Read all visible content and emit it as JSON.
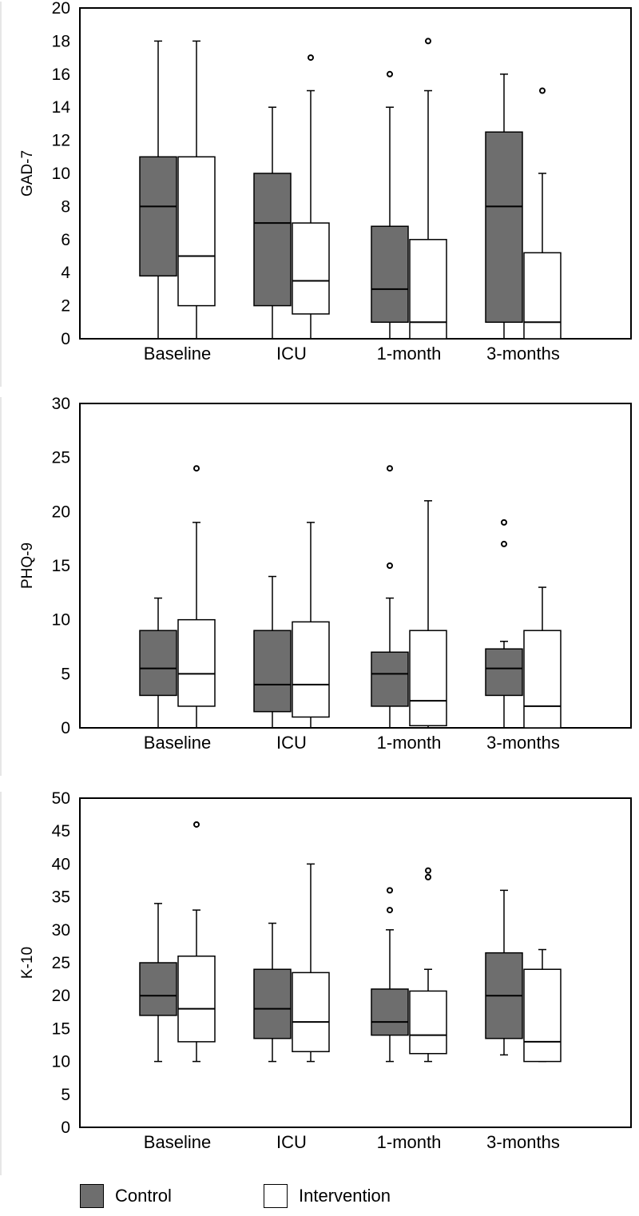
{
  "colors": {
    "control": "#6e6e6e",
    "intervention": "#ffffff",
    "stroke": "#000000"
  },
  "legend": {
    "control_label": "Control",
    "intervention_label": "Intervention"
  },
  "chart_data": [
    {
      "type": "boxplot",
      "ylabel": "GAD-7",
      "ylim": [
        0,
        20
      ],
      "yticks": [
        0,
        2,
        4,
        6,
        8,
        10,
        12,
        14,
        16,
        18,
        20
      ],
      "categories": [
        "Baseline",
        "ICU",
        "1-month",
        "3-months"
      ],
      "series": [
        {
          "name": "Control",
          "boxes": [
            {
              "min": 0,
              "q1": 3.8,
              "median": 8,
              "q3": 11,
              "max": 18,
              "outliers": []
            },
            {
              "min": 0,
              "q1": 2,
              "median": 7,
              "q3": 10,
              "max": 14,
              "outliers": []
            },
            {
              "min": 0,
              "q1": 1,
              "median": 3,
              "q3": 6.8,
              "max": 14,
              "outliers": [
                16
              ]
            },
            {
              "min": 0,
              "q1": 1,
              "median": 8,
              "q3": 12.5,
              "max": 16,
              "outliers": []
            }
          ]
        },
        {
          "name": "Intervention",
          "boxes": [
            {
              "min": 0,
              "q1": 2,
              "median": 5,
              "q3": 11,
              "max": 18,
              "outliers": []
            },
            {
              "min": 0,
              "q1": 1.5,
              "median": 3.5,
              "q3": 7,
              "max": 15,
              "outliers": [
                17
              ]
            },
            {
              "min": 0,
              "q1": 0,
              "median": 1,
              "q3": 6,
              "max": 15,
              "outliers": [
                18
              ]
            },
            {
              "min": 0,
              "q1": 0,
              "median": 1,
              "q3": 5.2,
              "max": 10,
              "outliers": [
                15
              ]
            }
          ]
        }
      ]
    },
    {
      "type": "boxplot",
      "ylabel": "PHQ-9",
      "ylim": [
        0,
        30
      ],
      "yticks": [
        0,
        5,
        10,
        15,
        20,
        25,
        30
      ],
      "categories": [
        "Baseline",
        "ICU",
        "1-month",
        "3-months"
      ],
      "series": [
        {
          "name": "Control",
          "boxes": [
            {
              "min": 0,
              "q1": 3,
              "median": 5.5,
              "q3": 9,
              "max": 12,
              "outliers": []
            },
            {
              "min": 0,
              "q1": 1.5,
              "median": 4,
              "q3": 9,
              "max": 14,
              "outliers": []
            },
            {
              "min": 0,
              "q1": 2,
              "median": 5,
              "q3": 7,
              "max": 12,
              "outliers": [
                15,
                24
              ]
            },
            {
              "min": 0,
              "q1": 3,
              "median": 5.5,
              "q3": 7.3,
              "max": 8,
              "outliers": [
                17,
                19
              ]
            }
          ]
        },
        {
          "name": "Intervention",
          "boxes": [
            {
              "min": 0,
              "q1": 2,
              "median": 5,
              "q3": 10,
              "max": 19,
              "outliers": [
                24
              ]
            },
            {
              "min": 0,
              "q1": 1,
              "median": 4,
              "q3": 9.8,
              "max": 19,
              "outliers": []
            },
            {
              "min": 0,
              "q1": 0.2,
              "median": 2.5,
              "q3": 9,
              "max": 21,
              "outliers": []
            },
            {
              "min": 0,
              "q1": 0,
              "median": 2,
              "q3": 9,
              "max": 13,
              "outliers": []
            }
          ]
        }
      ]
    },
    {
      "type": "boxplot",
      "ylabel": "K-10",
      "ylim": [
        0,
        50
      ],
      "yticks": [
        0,
        5,
        10,
        15,
        20,
        25,
        30,
        35,
        40,
        45,
        50
      ],
      "categories": [
        "Baseline",
        "ICU",
        "1-month",
        "3-months"
      ],
      "series": [
        {
          "name": "Control",
          "boxes": [
            {
              "min": 10,
              "q1": 17,
              "median": 20,
              "q3": 25,
              "max": 34,
              "outliers": []
            },
            {
              "min": 10,
              "q1": 13.5,
              "median": 18,
              "q3": 24,
              "max": 31,
              "outliers": []
            },
            {
              "min": 10,
              "q1": 14,
              "median": 16,
              "q3": 21,
              "max": 30,
              "outliers": [
                33,
                36
              ]
            },
            {
              "min": 11,
              "q1": 13.5,
              "median": 20,
              "q3": 26.5,
              "max": 36,
              "outliers": []
            }
          ]
        },
        {
          "name": "Intervention",
          "boxes": [
            {
              "min": 10,
              "q1": 13,
              "median": 18,
              "q3": 26,
              "max": 33,
              "outliers": [
                46
              ]
            },
            {
              "min": 10,
              "q1": 11.5,
              "median": 16,
              "q3": 23.5,
              "max": 40,
              "outliers": []
            },
            {
              "min": 10,
              "q1": 11.2,
              "median": 14,
              "q3": 20.7,
              "max": 24,
              "outliers": [
                38,
                39
              ]
            },
            {
              "min": 10,
              "q1": 10,
              "median": 13,
              "q3": 24,
              "max": 27,
              "outliers": []
            }
          ]
        }
      ]
    }
  ]
}
